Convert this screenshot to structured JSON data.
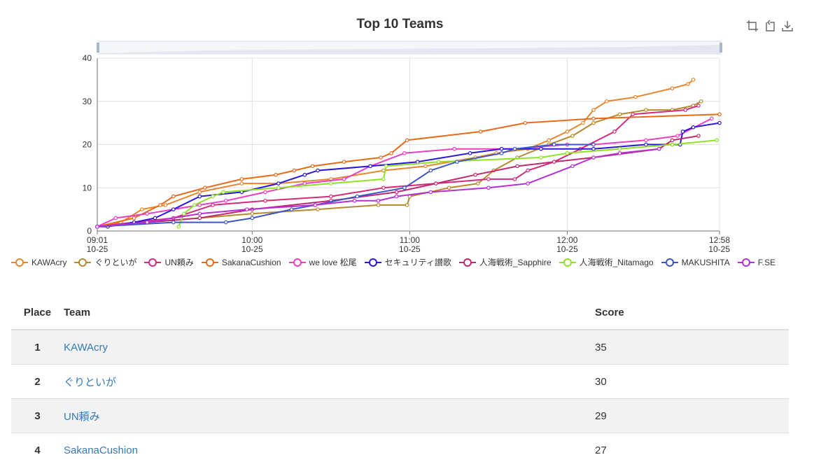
{
  "chart": {
    "title": "Top 10 Teams",
    "toolbox": [
      {
        "name": "zoom-icon"
      },
      {
        "name": "zoom-reset-icon"
      },
      {
        "name": "save-image-icon"
      }
    ]
  },
  "chart_data": {
    "type": "line",
    "title": "Top 10 Teams",
    "xlabel": "",
    "ylabel": "",
    "x_range": [
      "10-25 09:01",
      "10-25 12:58"
    ],
    "x_ticks": [
      {
        "time": "09:01",
        "date": "10-25"
      },
      {
        "time": "10:00",
        "date": "10-25"
      },
      {
        "time": "11:00",
        "date": "10-25"
      },
      {
        "time": "12:00",
        "date": "10-25"
      },
      {
        "time": "12:58",
        "date": "10-25"
      }
    ],
    "y_ticks": [
      0,
      10,
      20,
      30,
      40
    ],
    "ylim": [
      0,
      40
    ],
    "grid": true,
    "legend_position": "bottom",
    "data_zoom": "slider-top",
    "series": [
      {
        "name": "KAWAcry",
        "color": "#e6862e",
        "points": [
          [
            "09:01",
            1
          ],
          [
            "09:10",
            2
          ],
          [
            "09:18",
            5
          ],
          [
            "09:27",
            6
          ],
          [
            "09:40",
            9
          ],
          [
            "09:56",
            11
          ],
          [
            "10:10",
            11
          ],
          [
            "10:30",
            12
          ],
          [
            "10:50",
            14
          ],
          [
            "11:06",
            15
          ],
          [
            "11:25",
            17
          ],
          [
            "11:33",
            18
          ],
          [
            "11:45",
            19
          ],
          [
            "11:53",
            21
          ],
          [
            "12:00",
            23
          ],
          [
            "12:06",
            25
          ],
          [
            "12:10",
            28
          ],
          [
            "12:15",
            30
          ],
          [
            "12:26",
            31
          ],
          [
            "12:40",
            33
          ],
          [
            "12:46",
            34
          ],
          [
            "12:48",
            35
          ]
        ]
      },
      {
        "name": "ぐりといが",
        "color": "#b58a2e",
        "points": [
          [
            "09:01",
            1
          ],
          [
            "09:20",
            2
          ],
          [
            "09:40",
            3
          ],
          [
            "10:00",
            4
          ],
          [
            "10:25",
            5
          ],
          [
            "10:48",
            6
          ],
          [
            "10:59",
            6
          ],
          [
            "11:00",
            8
          ],
          [
            "11:15",
            10
          ],
          [
            "11:26",
            11
          ],
          [
            "11:32",
            14
          ],
          [
            "11:41",
            17
          ],
          [
            "11:53",
            20
          ],
          [
            "12:02",
            22
          ],
          [
            "12:10",
            25
          ],
          [
            "12:20",
            27
          ],
          [
            "12:30",
            28
          ],
          [
            "12:40",
            28
          ],
          [
            "12:48",
            29
          ],
          [
            "12:51",
            30
          ]
        ]
      },
      {
        "name": "UN頼み",
        "color": "#d6297a",
        "points": [
          [
            "09:01",
            1
          ],
          [
            "09:15",
            2
          ],
          [
            "09:30",
            3
          ],
          [
            "09:45",
            6
          ],
          [
            "10:05",
            7
          ],
          [
            "10:30",
            8
          ],
          [
            "10:50",
            10
          ],
          [
            "11:10",
            11
          ],
          [
            "11:30",
            12
          ],
          [
            "11:40",
            12
          ],
          [
            "11:45",
            14
          ],
          [
            "11:55",
            16
          ],
          [
            "12:05",
            19
          ],
          [
            "12:18",
            23
          ],
          [
            "12:25",
            27
          ],
          [
            "12:45",
            28
          ],
          [
            "12:50",
            29
          ]
        ]
      },
      {
        "name": "SakanaCushion",
        "color": "#e66a1a",
        "points": [
          [
            "09:01",
            1
          ],
          [
            "09:15",
            3
          ],
          [
            "09:25",
            6
          ],
          [
            "09:30",
            8
          ],
          [
            "09:42",
            10
          ],
          [
            "09:56",
            12
          ],
          [
            "10:09",
            13
          ],
          [
            "10:16",
            14
          ],
          [
            "10:23",
            15
          ],
          [
            "10:35",
            16
          ],
          [
            "10:49",
            17
          ],
          [
            "10:53",
            18
          ],
          [
            "10:59",
            21
          ],
          [
            "11:27",
            23
          ],
          [
            "11:44",
            25
          ],
          [
            "12:10",
            26
          ],
          [
            "12:58",
            27
          ]
        ]
      },
      {
        "name": "we love 松尾",
        "color": "#e93fc4",
        "points": [
          [
            "09:01",
            1
          ],
          [
            "09:08",
            3
          ],
          [
            "09:20",
            4
          ],
          [
            "09:30",
            5
          ],
          [
            "09:40",
            6
          ],
          [
            "09:50",
            7
          ],
          [
            "10:05",
            9
          ],
          [
            "10:20",
            11
          ],
          [
            "10:35",
            12
          ],
          [
            "10:45",
            15
          ],
          [
            "10:58",
            18
          ],
          [
            "11:17",
            19
          ],
          [
            "11:40",
            19
          ],
          [
            "12:00",
            20
          ],
          [
            "12:10",
            20
          ],
          [
            "12:30",
            21
          ],
          [
            "12:42",
            22
          ],
          [
            "12:55",
            26
          ]
        ]
      },
      {
        "name": "セキュリティ讃歌",
        "color": "#2a17d8",
        "points": [
          [
            "09:01",
            1
          ],
          [
            "09:05",
            1
          ],
          [
            "09:15",
            2
          ],
          [
            "09:23",
            3
          ],
          [
            "09:30",
            5
          ],
          [
            "09:40",
            8
          ],
          [
            "09:56",
            9
          ],
          [
            "10:10",
            11
          ],
          [
            "10:20",
            13
          ],
          [
            "10:25",
            14
          ],
          [
            "10:45",
            15
          ],
          [
            "11:03",
            16
          ],
          [
            "11:23",
            18
          ],
          [
            "11:35",
            19
          ],
          [
            "11:50",
            19
          ],
          [
            "12:10",
            19
          ],
          [
            "12:30",
            20
          ],
          [
            "12:43",
            20
          ],
          [
            "12:44",
            23
          ],
          [
            "12:48",
            24
          ],
          [
            "12:58",
            25
          ]
        ]
      },
      {
        "name": "人海戦術_Sapphire",
        "color": "#c02872",
        "points": [
          [
            "09:01",
            1
          ],
          [
            "09:20",
            2
          ],
          [
            "09:40",
            3
          ],
          [
            "10:00",
            5
          ],
          [
            "10:30",
            7
          ],
          [
            "10:55",
            9
          ],
          [
            "11:10",
            11
          ],
          [
            "11:25",
            13
          ],
          [
            "11:41",
            15
          ],
          [
            "11:55",
            16
          ],
          [
            "12:10",
            17
          ],
          [
            "12:35",
            19
          ],
          [
            "12:40",
            21
          ],
          [
            "12:50",
            22
          ]
        ]
      },
      {
        "name": "人海戦術_Nitamago",
        "color": "#8fe126",
        "points": [
          [
            "09:32",
            1
          ],
          [
            "09:34",
            4
          ],
          [
            "09:38",
            6
          ],
          [
            "09:45",
            8
          ],
          [
            "09:49",
            9
          ],
          [
            "10:10",
            10
          ],
          [
            "10:30",
            11
          ],
          [
            "10:50",
            12
          ],
          [
            "10:51",
            15
          ],
          [
            "11:11",
            16
          ],
          [
            "11:50",
            17
          ],
          [
            "12:00",
            18
          ],
          [
            "12:20",
            19
          ],
          [
            "12:40",
            20
          ],
          [
            "12:57",
            21
          ]
        ]
      },
      {
        "name": "MAKUSHITA",
        "color": "#3b56c6",
        "points": [
          [
            "09:01",
            1
          ],
          [
            "09:30",
            2
          ],
          [
            "09:50",
            2
          ],
          [
            "10:00",
            3
          ],
          [
            "10:15",
            5
          ],
          [
            "10:24",
            6
          ],
          [
            "10:40",
            8
          ],
          [
            "10:58",
            10
          ],
          [
            "11:08",
            14
          ],
          [
            "11:18",
            16
          ],
          [
            "11:35",
            18
          ],
          [
            "11:40",
            19
          ],
          [
            "11:55",
            20
          ],
          [
            "12:10",
            20
          ]
        ]
      },
      {
        "name": "F.SE",
        "color": "#b52fd6",
        "points": [
          [
            "09:01",
            1
          ],
          [
            "09:20",
            2
          ],
          [
            "09:40",
            4
          ],
          [
            "09:58",
            5
          ],
          [
            "10:24",
            6
          ],
          [
            "10:39",
            7
          ],
          [
            "10:48",
            7
          ],
          [
            "10:55",
            8
          ],
          [
            "11:08",
            9
          ],
          [
            "11:30",
            10
          ],
          [
            "11:45",
            11
          ],
          [
            "12:02",
            15
          ],
          [
            "12:10",
            17
          ],
          [
            "12:20",
            18
          ],
          [
            "12:35",
            19
          ]
        ]
      }
    ]
  },
  "table": {
    "headers": {
      "place": "Place",
      "team": "Team",
      "score": "Score"
    },
    "rows": [
      {
        "place": "1",
        "team": "KAWAcry",
        "score": "35"
      },
      {
        "place": "2",
        "team": "ぐりといが",
        "score": "30"
      },
      {
        "place": "3",
        "team": "UN頼み",
        "score": "29"
      },
      {
        "place": "4",
        "team": "SakanaCushion",
        "score": "27"
      }
    ]
  }
}
